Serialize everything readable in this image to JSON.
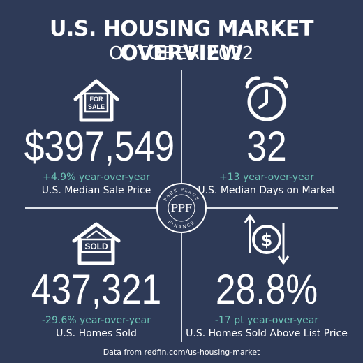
{
  "header": {
    "title": "U.S. HOUSING MARKET OVERVIEW",
    "subtitle": "OCTOBER 2022"
  },
  "stats": [
    {
      "icon": "for-sale-house-icon",
      "value": "$397,549",
      "change": "+4.9% year-over-year",
      "label": "U.S. Median Sale Price"
    },
    {
      "icon": "alarm-clock-icon",
      "value": "32",
      "change": "+13 year-over-year",
      "label": "U.S. Median Days on Market"
    },
    {
      "icon": "sold-house-icon",
      "value": "437,321",
      "change": "-29.6% year-over-year",
      "label": "U.S. Homes Sold"
    },
    {
      "icon": "dollar-arrows-icon",
      "value": "28.8%",
      "change": "-17 pt year-over-year",
      "label": "U.S. Homes Sold Above List Price"
    }
  ],
  "logo": {
    "monogram": "PPF",
    "top_text": "PARK PLACE",
    "bottom_text": "FINANCE"
  },
  "icons": {
    "for_sale_sign_line1": "FOR",
    "for_sale_sign_line2": "SALE",
    "sold_sign": "SOLD"
  },
  "footer": "Data from redfin.com/us-housing-market",
  "colors": {
    "background": "#2e3a57",
    "accent": "#6cc3b6",
    "text": "#ffffff"
  }
}
